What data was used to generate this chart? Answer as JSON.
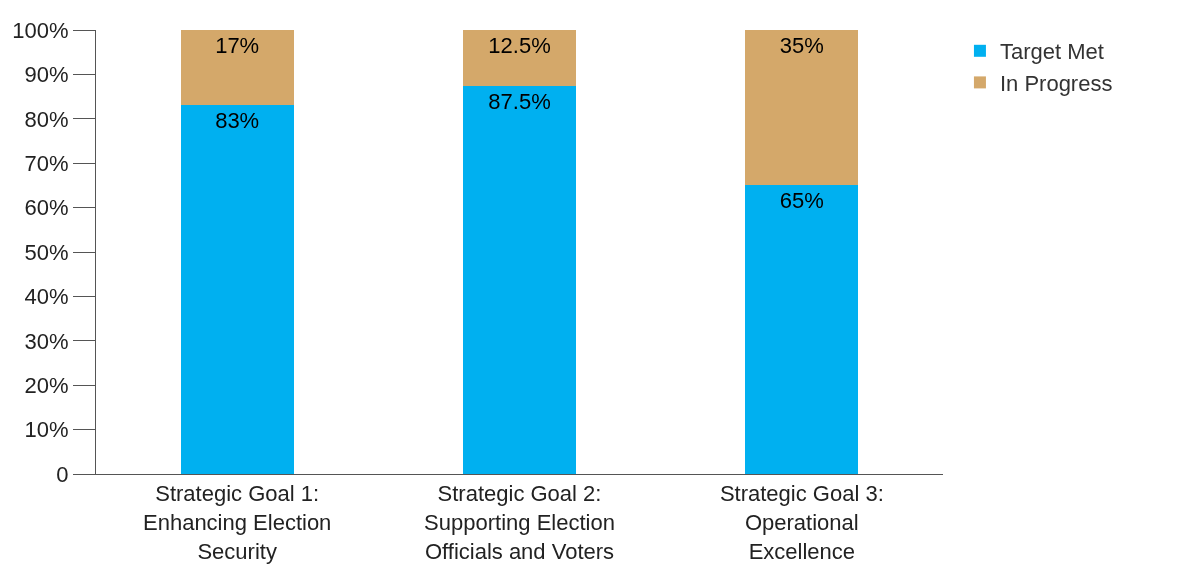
{
  "chart_data": {
    "type": "bar",
    "stacked": true,
    "categories": [
      "Strategic Goal 1:\nEnhancing Election\nSecurity",
      "Strategic Goal 2:\nSupporting Election\nOfficials and Voters",
      "Strategic Goal 3:\nOperational\nExcellence"
    ],
    "series": [
      {
        "name": "Target Met",
        "color": "#00b0f0",
        "values": [
          83,
          87.5,
          65
        ],
        "value_labels": [
          "83%",
          "87.5%",
          "65%"
        ]
      },
      {
        "name": "In Progress",
        "color": "#d4a86a",
        "values": [
          17,
          12.5,
          35
        ],
        "value_labels": [
          "17%",
          "12.5%",
          "35%"
        ]
      }
    ],
    "ylim": [
      0,
      100
    ],
    "yticks": [
      {
        "value": 0,
        "label": "0"
      },
      {
        "value": 10,
        "label": "10%"
      },
      {
        "value": 20,
        "label": "20%"
      },
      {
        "value": 30,
        "label": "30%"
      },
      {
        "value": 40,
        "label": "40%"
      },
      {
        "value": 50,
        "label": "50%"
      },
      {
        "value": 60,
        "label": "60%"
      },
      {
        "value": 70,
        "label": "70%"
      },
      {
        "value": 80,
        "label": "80%"
      },
      {
        "value": 90,
        "label": "90%"
      },
      {
        "value": 100,
        "label": "100%"
      }
    ],
    "legend": "top right"
  }
}
